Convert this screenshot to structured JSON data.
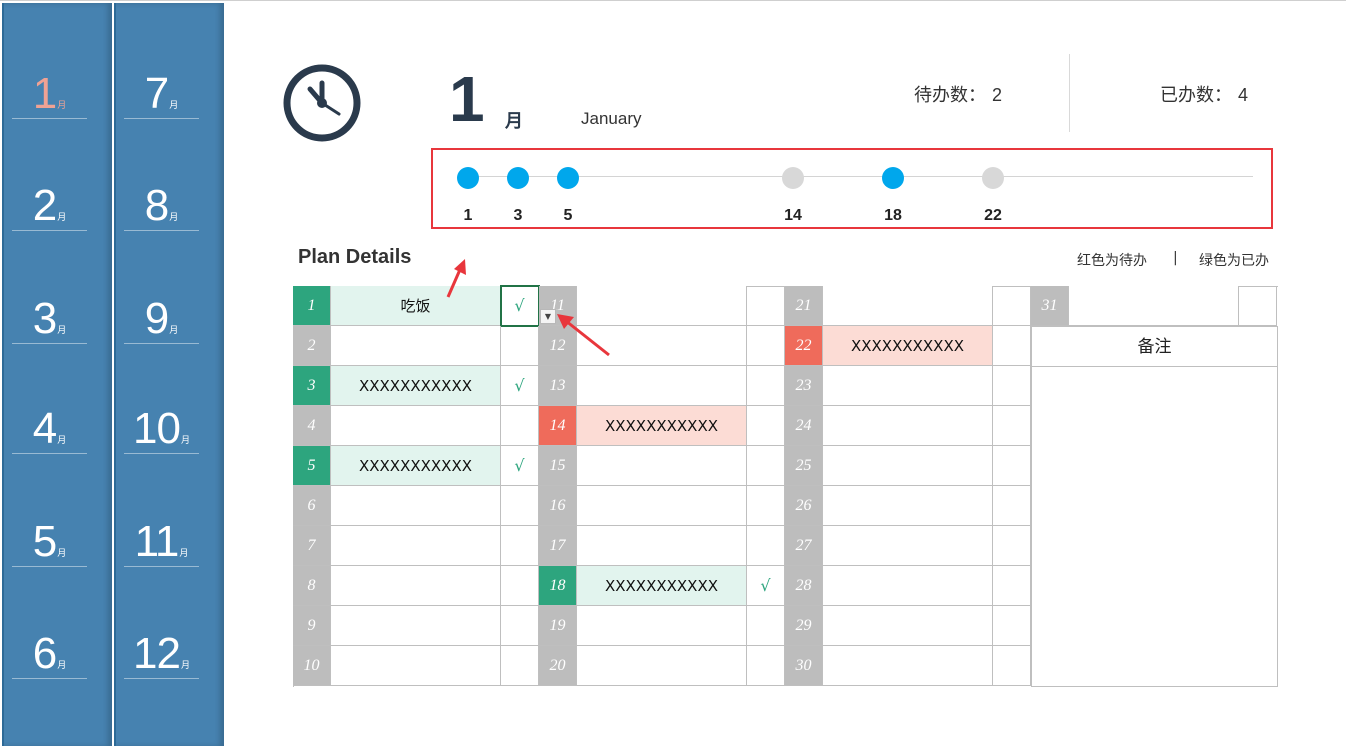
{
  "months": {
    "unit": "月",
    "column1": [
      "1",
      "2",
      "3",
      "4",
      "5",
      "6"
    ],
    "column2": [
      "7",
      "8",
      "9",
      "10",
      "11",
      "12"
    ],
    "active": "1"
  },
  "header": {
    "month_number": "1",
    "month_unit": "月",
    "month_english": "January",
    "pending_label": "待办数：",
    "pending_value": "2",
    "done_label": "已办数：",
    "done_value": "4"
  },
  "timeline": {
    "points": [
      {
        "day": "1",
        "status": "done"
      },
      {
        "day": "3",
        "status": "done"
      },
      {
        "day": "5",
        "status": "done"
      },
      {
        "day": "14",
        "status": "pending"
      },
      {
        "day": "18",
        "status": "done"
      },
      {
        "day": "22",
        "status": "pending"
      }
    ],
    "colors": {
      "done": "#00a7ec",
      "pending": "#d8d8d8",
      "frame": "#e8363c"
    }
  },
  "plan": {
    "title": "Plan Details",
    "legend_red": "红色为待办",
    "legend_sep": "|",
    "legend_green": "绿色为已办",
    "notes_label": "备注",
    "colors": {
      "done": "#2da57e",
      "pending": "#ef6b5b",
      "empty": "#bdbdbd"
    },
    "days": [
      {
        "day": "1",
        "task": "吃饭",
        "status": "done",
        "mark": "√"
      },
      {
        "day": "2",
        "task": "",
        "status": "empty",
        "mark": ""
      },
      {
        "day": "3",
        "task": "XXXXXXXXXXX",
        "status": "done",
        "mark": "√"
      },
      {
        "day": "4",
        "task": "",
        "status": "empty",
        "mark": ""
      },
      {
        "day": "5",
        "task": "XXXXXXXXXXX",
        "status": "done",
        "mark": "√"
      },
      {
        "day": "6",
        "task": "",
        "status": "empty",
        "mark": ""
      },
      {
        "day": "7",
        "task": "",
        "status": "empty",
        "mark": ""
      },
      {
        "day": "8",
        "task": "",
        "status": "empty",
        "mark": ""
      },
      {
        "day": "9",
        "task": "",
        "status": "empty",
        "mark": ""
      },
      {
        "day": "10",
        "task": "",
        "status": "empty",
        "mark": ""
      },
      {
        "day": "11",
        "task": "",
        "status": "empty",
        "mark": ""
      },
      {
        "day": "12",
        "task": "",
        "status": "empty",
        "mark": ""
      },
      {
        "day": "13",
        "task": "",
        "status": "empty",
        "mark": ""
      },
      {
        "day": "14",
        "task": "XXXXXXXXXXX",
        "status": "pending",
        "mark": ""
      },
      {
        "day": "15",
        "task": "",
        "status": "empty",
        "mark": ""
      },
      {
        "day": "16",
        "task": "",
        "status": "empty",
        "mark": ""
      },
      {
        "day": "17",
        "task": "",
        "status": "empty",
        "mark": ""
      },
      {
        "day": "18",
        "task": "XXXXXXXXXXX",
        "status": "done",
        "mark": "√"
      },
      {
        "day": "19",
        "task": "",
        "status": "empty",
        "mark": ""
      },
      {
        "day": "20",
        "task": "",
        "status": "empty",
        "mark": ""
      },
      {
        "day": "21",
        "task": "",
        "status": "empty",
        "mark": ""
      },
      {
        "day": "22",
        "task": "XXXXXXXXXXX",
        "status": "pending",
        "mark": ""
      },
      {
        "day": "23",
        "task": "",
        "status": "empty",
        "mark": ""
      },
      {
        "day": "24",
        "task": "",
        "status": "empty",
        "mark": ""
      },
      {
        "day": "25",
        "task": "",
        "status": "empty",
        "mark": ""
      },
      {
        "day": "26",
        "task": "",
        "status": "empty",
        "mark": ""
      },
      {
        "day": "27",
        "task": "",
        "status": "empty",
        "mark": ""
      },
      {
        "day": "28",
        "task": "",
        "status": "empty",
        "mark": ""
      },
      {
        "day": "29",
        "task": "",
        "status": "empty",
        "mark": ""
      },
      {
        "day": "30",
        "task": "",
        "status": "empty",
        "mark": ""
      },
      {
        "day": "31",
        "task": "",
        "status": "empty",
        "mark": ""
      }
    ]
  }
}
